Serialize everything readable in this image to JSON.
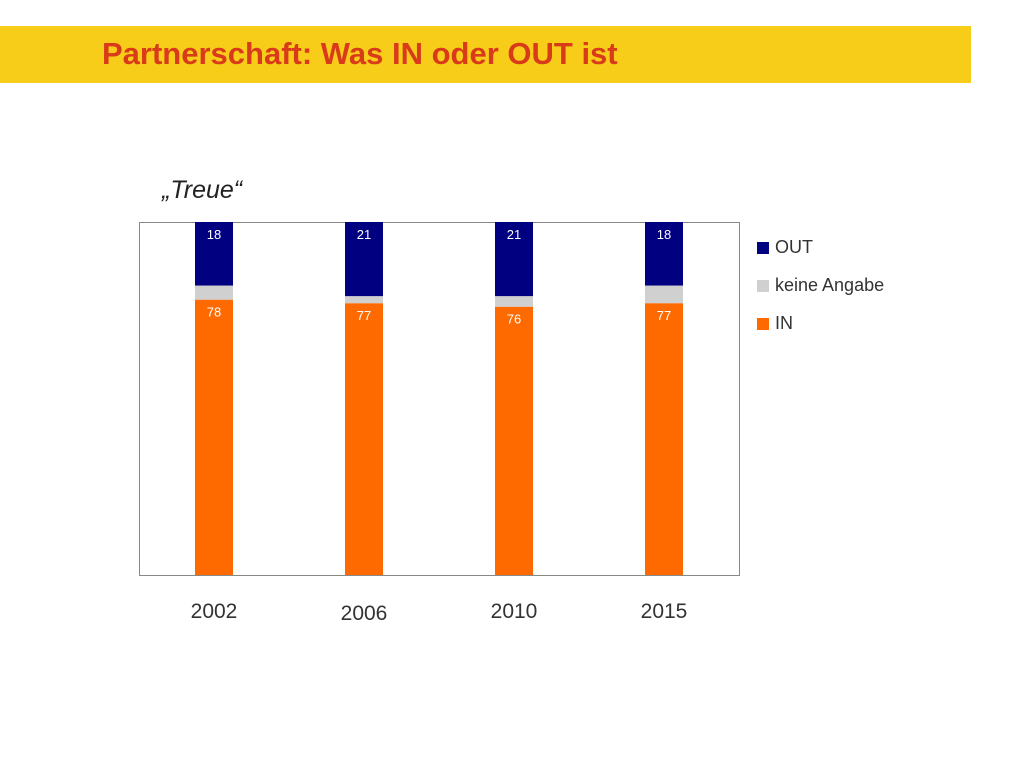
{
  "header": {
    "title": "Partnerschaft: Was IN oder OUT ist"
  },
  "chart_data": {
    "type": "bar",
    "stacked": true,
    "title": "„Treue“",
    "xlabel": "",
    "ylabel": "",
    "ylim": [
      0,
      100
    ],
    "grid": false,
    "legend_position": "right",
    "categories": [
      "2002",
      "2006",
      "2010",
      "2015"
    ],
    "series": [
      {
        "name": "IN",
        "values": [
          78,
          77,
          76,
          77
        ],
        "color": "#ff6a00"
      },
      {
        "name": "keine Angabe",
        "values": [
          4,
          2,
          3,
          5
        ],
        "color": "#d0d0d0"
      },
      {
        "name": "OUT",
        "values": [
          18,
          21,
          21,
          18
        ],
        "color": "#000080"
      }
    ],
    "data_labels": {
      "IN": [
        "78",
        "77",
        "76",
        "77"
      ],
      "OUT": [
        "18",
        "21",
        "21",
        "18"
      ]
    },
    "legend": [
      "OUT",
      "keine Angabe",
      "IN"
    ]
  }
}
